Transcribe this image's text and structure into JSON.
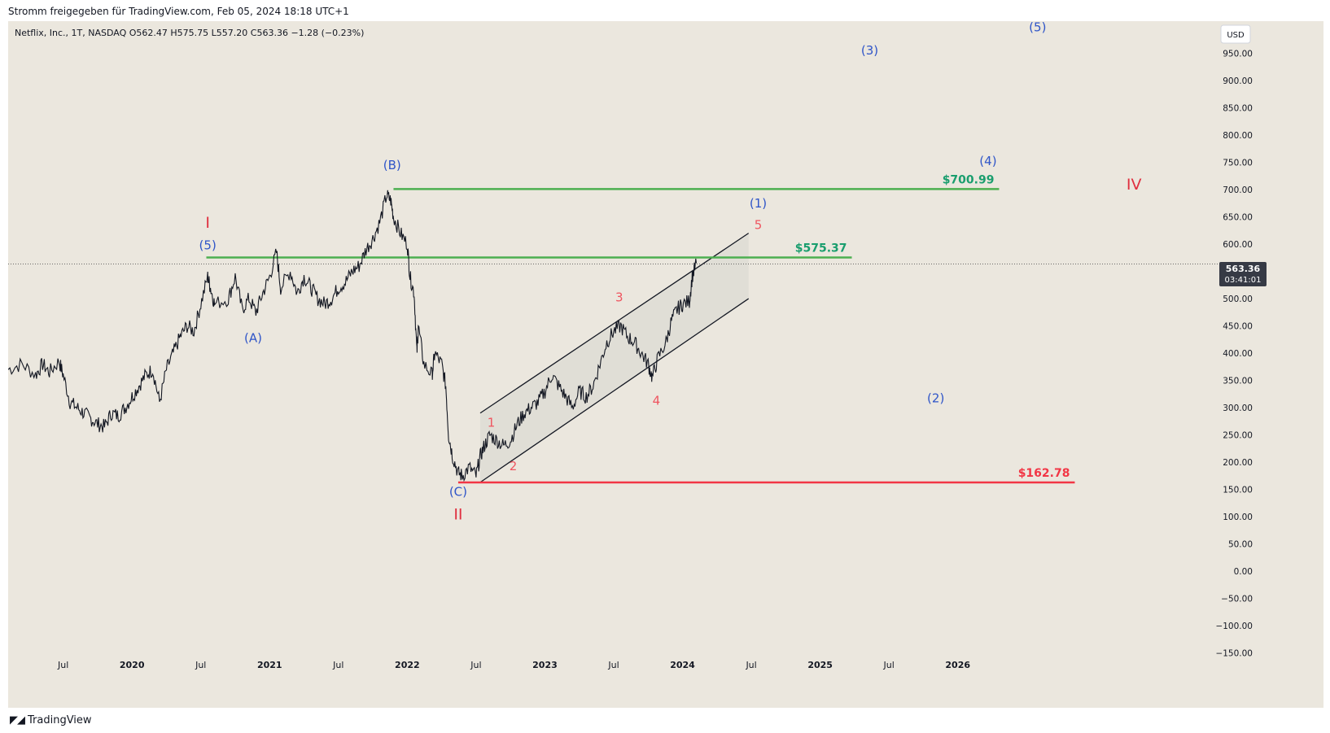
{
  "header": {
    "attribution": "Stromm freigegeben für TradingView.com, Feb 05, 2024 18:18 UTC+1"
  },
  "chart_data": {
    "type": "line",
    "title": "Netflix, Inc., 1T, NASDAQ  O562.47  H575.75  L557.20  C563.36  −1.28 (−0.23%)",
    "currency": "USD",
    "last_price": {
      "value": "563.36",
      "countdown": "03:41:01"
    },
    "ylim": [
      -170,
      1000
    ],
    "y_ticks": [
      950,
      900,
      850,
      800,
      750,
      700,
      650,
      600,
      550,
      500,
      450,
      400,
      350,
      300,
      250,
      200,
      150,
      100,
      50,
      0,
      -50,
      -100,
      -150
    ],
    "y_tick_labels": [
      "950.00",
      "900.00",
      "850.00",
      "800.00",
      "750.00",
      "700.00",
      "650.00",
      "600.00",
      "550.00",
      "500.00",
      "450.00",
      "400.00",
      "350.00",
      "300.00",
      "250.00",
      "200.00",
      "150.00",
      "100.00",
      "50.00",
      "0.00",
      "−50.00",
      "−100.00",
      "−150.00"
    ],
    "x_ticks": [
      {
        "t": 2019.5,
        "label": "Jul"
      },
      {
        "t": 2020.0,
        "label": "2020"
      },
      {
        "t": 2020.5,
        "label": "Jul"
      },
      {
        "t": 2021.0,
        "label": "2021"
      },
      {
        "t": 2021.5,
        "label": "Jul"
      },
      {
        "t": 2022.0,
        "label": "2022"
      },
      {
        "t": 2022.5,
        "label": "Jul"
      },
      {
        "t": 2023.0,
        "label": "2023"
      },
      {
        "t": 2023.5,
        "label": "Jul"
      },
      {
        "t": 2024.0,
        "label": "2024"
      },
      {
        "t": 2024.5,
        "label": "Jul"
      },
      {
        "t": 2025.0,
        "label": "2025"
      },
      {
        "t": 2025.5,
        "label": "Jul"
      },
      {
        "t": 2026.0,
        "label": "2026"
      }
    ],
    "xlim": [
      2019.1,
      2027.9
    ],
    "series": [
      {
        "points": [
          [
            2019.1,
            370
          ],
          [
            2019.2,
            380
          ],
          [
            2019.3,
            360
          ],
          [
            2019.35,
            380
          ],
          [
            2019.4,
            365
          ],
          [
            2019.47,
            385
          ],
          [
            2019.5,
            360
          ],
          [
            2019.55,
            310
          ],
          [
            2019.6,
            300
          ],
          [
            2019.65,
            290
          ],
          [
            2019.7,
            280
          ],
          [
            2019.75,
            270
          ],
          [
            2019.8,
            265
          ],
          [
            2019.85,
            290
          ],
          [
            2019.9,
            285
          ],
          [
            2019.95,
            300
          ],
          [
            2020.0,
            320
          ],
          [
            2020.05,
            340
          ],
          [
            2020.1,
            360
          ],
          [
            2020.15,
            370
          ],
          [
            2020.2,
            310
          ],
          [
            2020.25,
            370
          ],
          [
            2020.3,
            400
          ],
          [
            2020.35,
            430
          ],
          [
            2020.4,
            450
          ],
          [
            2020.45,
            440
          ],
          [
            2020.5,
            490
          ],
          [
            2020.55,
            540
          ],
          [
            2020.57,
            520
          ],
          [
            2020.6,
            490
          ],
          [
            2020.7,
            500
          ],
          [
            2020.75,
            540
          ],
          [
            2020.8,
            480
          ],
          [
            2020.85,
            500
          ],
          [
            2020.9,
            475
          ],
          [
            2020.95,
            510
          ],
          [
            2021.0,
            540
          ],
          [
            2021.05,
            585
          ],
          [
            2021.08,
            520
          ],
          [
            2021.15,
            550
          ],
          [
            2021.2,
            510
          ],
          [
            2021.25,
            540
          ],
          [
            2021.3,
            520
          ],
          [
            2021.35,
            500
          ],
          [
            2021.4,
            490
          ],
          [
            2021.45,
            500
          ],
          [
            2021.5,
            520
          ],
          [
            2021.55,
            530
          ],
          [
            2021.6,
            550
          ],
          [
            2021.65,
            560
          ],
          [
            2021.7,
            590
          ],
          [
            2021.75,
            610
          ],
          [
            2021.8,
            640
          ],
          [
            2021.85,
            690
          ],
          [
            2021.88,
            680
          ],
          [
            2021.9,
            650
          ],
          [
            2021.95,
            620
          ],
          [
            2022.0,
            600
          ],
          [
            2022.02,
            540
          ],
          [
            2022.05,
            510
          ],
          [
            2022.07,
            400
          ],
          [
            2022.08,
            450
          ],
          [
            2022.12,
            380
          ],
          [
            2022.18,
            360
          ],
          [
            2022.2,
            400
          ],
          [
            2022.25,
            380
          ],
          [
            2022.28,
            340
          ],
          [
            2022.3,
            250
          ],
          [
            2022.33,
            210
          ],
          [
            2022.37,
            180
          ],
          [
            2022.4,
            175
          ],
          [
            2022.45,
            190
          ],
          [
            2022.5,
            175
          ],
          [
            2022.53,
            210
          ],
          [
            2022.56,
            230
          ],
          [
            2022.6,
            250
          ],
          [
            2022.65,
            240
          ],
          [
            2022.7,
            230
          ],
          [
            2022.75,
            240
          ],
          [
            2022.8,
            270
          ],
          [
            2022.85,
            290
          ],
          [
            2022.9,
            300
          ],
          [
            2022.95,
            310
          ],
          [
            2023.0,
            330
          ],
          [
            2023.05,
            360
          ],
          [
            2023.1,
            340
          ],
          [
            2023.15,
            320
          ],
          [
            2023.2,
            300
          ],
          [
            2023.25,
            330
          ],
          [
            2023.3,
            320
          ],
          [
            2023.35,
            340
          ],
          [
            2023.4,
            380
          ],
          [
            2023.45,
            420
          ],
          [
            2023.5,
            440
          ],
          [
            2023.55,
            450
          ],
          [
            2023.6,
            430
          ],
          [
            2023.65,
            420
          ],
          [
            2023.7,
            400
          ],
          [
            2023.75,
            380
          ],
          [
            2023.78,
            355
          ],
          [
            2023.82,
            390
          ],
          [
            2023.88,
            420
          ],
          [
            2023.92,
            460
          ],
          [
            2023.96,
            480
          ],
          [
            2024.0,
            490
          ],
          [
            2024.05,
            495
          ],
          [
            2024.07,
            540
          ],
          [
            2024.1,
            565
          ]
        ]
      }
    ],
    "levels": [
      {
        "label": "$700.99",
        "value": 700.99,
        "color": "#4caf50",
        "label_color": "#1a9e6e",
        "from": 2021.9,
        "to": 2026.3
      },
      {
        "label": "$575.37",
        "value": 575.37,
        "color": "#4caf50",
        "label_color": "#1a9e6e",
        "from": 2020.54,
        "to": 2025.23
      },
      {
        "label": "$162.78",
        "value": 162.78,
        "color": "#f23645",
        "label_color": "#f23645",
        "from": 2022.37,
        "to": 2026.85
      }
    ],
    "channel": {
      "upper": [
        [
          2022.53,
          290
        ],
        [
          2024.48,
          620
        ]
      ],
      "lower": [
        [
          2022.53,
          163
        ],
        [
          2024.48,
          500
        ]
      ]
    },
    "annotations": [
      {
        "text": "I",
        "t": 2020.55,
        "v": 630,
        "color": "#e03040",
        "size": 19
      },
      {
        "text": "(5)",
        "t": 2020.55,
        "v": 590,
        "color": "#2f55c8",
        "size": 15
      },
      {
        "text": "(A)",
        "t": 2020.88,
        "v": 420,
        "color": "#2f55c8",
        "size": 15
      },
      {
        "text": "(B)",
        "t": 2021.89,
        "v": 737,
        "color": "#2f55c8",
        "size": 15
      },
      {
        "text": "(C)",
        "t": 2022.37,
        "v": 138,
        "color": "#2f55c8",
        "size": 15
      },
      {
        "text": "II",
        "t": 2022.37,
        "v": 95,
        "color": "#e03040",
        "size": 19
      },
      {
        "text": "1",
        "t": 2022.61,
        "v": 265,
        "color": "#ef5560",
        "size": 15
      },
      {
        "text": "2",
        "t": 2022.77,
        "v": 185,
        "color": "#ef5560",
        "size": 15
      },
      {
        "text": "3",
        "t": 2023.54,
        "v": 495,
        "color": "#ef5560",
        "size": 15
      },
      {
        "text": "4",
        "t": 2023.81,
        "v": 305,
        "color": "#ef5560",
        "size": 15
      },
      {
        "text": "5",
        "t": 2024.55,
        "v": 628,
        "color": "#ef5560",
        "size": 15
      },
      {
        "text": "(1)",
        "t": 2024.55,
        "v": 667,
        "color": "#2f55c8",
        "size": 15
      },
      {
        "text": "(2)",
        "t": 2025.84,
        "v": 310,
        "color": "#2f55c8",
        "size": 15
      },
      {
        "text": "(3)",
        "t": 2025.36,
        "v": 948,
        "color": "#2f55c8",
        "size": 15
      },
      {
        "text": "(4)",
        "t": 2026.22,
        "v": 745,
        "color": "#2f55c8",
        "size": 15
      },
      {
        "text": "(5)",
        "t": 2026.58,
        "v": 990,
        "color": "#2f55c8",
        "size": 15
      },
      {
        "text": "IV",
        "t": 2027.28,
        "v": 700,
        "color": "#e03040",
        "size": 19
      }
    ]
  },
  "footer": {
    "brand": "TradingView",
    "logo": "tradingview-logo"
  }
}
